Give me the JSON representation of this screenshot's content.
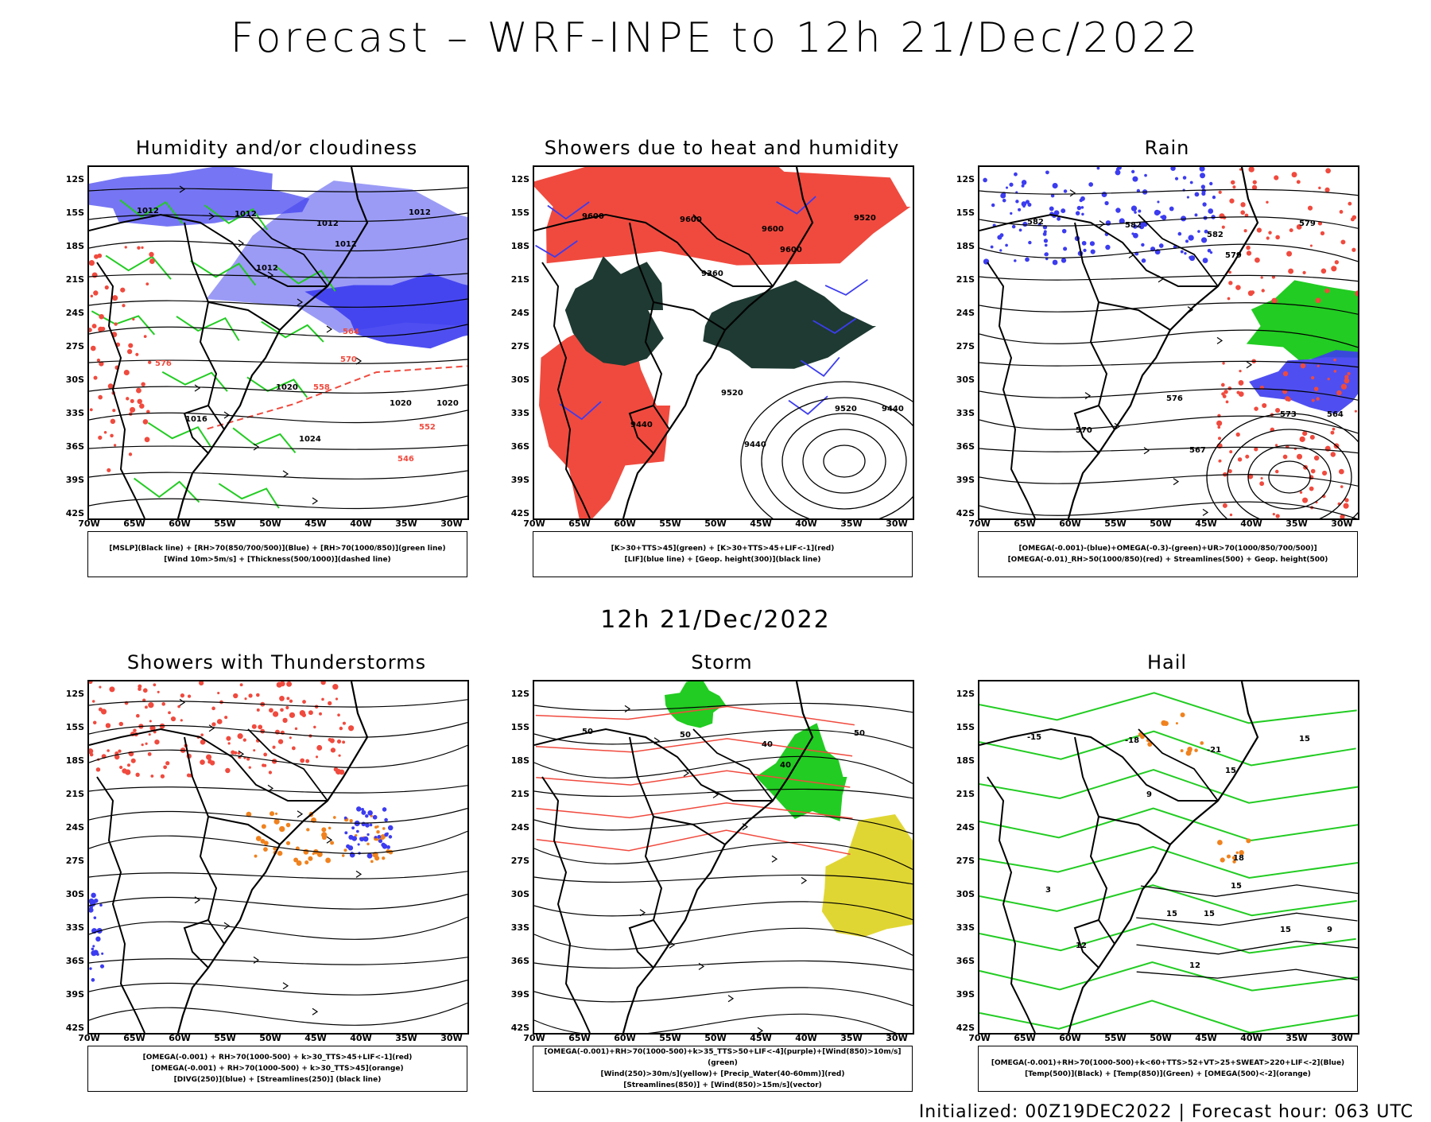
{
  "title": "Forecast – WRF-INPE to 12h 21/Dec/2022",
  "subtitle": "12h 21/Dec/2022",
  "footer": "Initialized: 00Z19DEC2022 | Forecast hour: 063 UTC",
  "axis": {
    "lat": [
      "12S",
      "15S",
      "18S",
      "21S",
      "24S",
      "27S",
      "30S",
      "33S",
      "36S",
      "39S",
      "42S"
    ],
    "lon": [
      "70W",
      "65W",
      "60W",
      "55W",
      "50W",
      "45W",
      "40W",
      "35W",
      "30W"
    ]
  },
  "colors": {
    "red": "#f04a3e",
    "blue": "#3c3cf0",
    "lavender": "#8a8af5",
    "green": "#22cc22",
    "darkgreen": "#1e3a32",
    "orange": "#f0821e",
    "yellow": "#e0d633",
    "coast": "#000000"
  },
  "panels": [
    {
      "title": "Humidity and/or cloudiness",
      "legend": [
        "[MSLP](Black line) + [RH>70(850/700/500)](Blue) + [RH>70(1000/850)](green line)",
        "[Wind 10m>5m/s] + [Thickness(500/1000)](dashed line)"
      ],
      "labels": [
        "1012",
        "1012",
        "1012",
        "1012",
        "1012",
        "1020",
        "1020",
        "1016",
        "1024",
        "1020",
        "1012",
        "576",
        "570",
        "564",
        "558",
        "552",
        "546"
      ],
      "layers": [
        "lavender",
        "blue",
        "green-contours",
        "red-dashed",
        "wind-vectors",
        "mslp"
      ]
    },
    {
      "title": "Showers due to heat and humidity",
      "legend": [
        "[K>30+TTS>45](green) + [K>30+TTS>45+LIF<-1](red)",
        "[LIF](blue line) + [Geop. height(300)](black line)"
      ],
      "labels": [
        "9600",
        "9600",
        "9600",
        "9600",
        "9520",
        "9520",
        "9520",
        "9440",
        "9440",
        "9440",
        "9360"
      ],
      "layers": [
        "red",
        "darkgreen",
        "blue-contours",
        "geopotential"
      ]
    },
    {
      "title": "Rain",
      "legend": [
        "[OMEGA(-0.001)-(blue)+OMEGA(-0.3)-(green)+UR>70(1000/850/700/500)]",
        "[OMEGA(-0.01)_RH>50(1000/850)(red) + Streamlines(500) + Geop. height(500)"
      ],
      "labels": [
        "582",
        "582",
        "582",
        "579",
        "579",
        "576",
        "573",
        "570",
        "567",
        "564"
      ],
      "layers": [
        "blue",
        "green",
        "red",
        "streamlines"
      ]
    },
    {
      "title": "Showers with Thunderstorms",
      "legend": [
        "[OMEGA(-0.001) + RH>70(1000-500) + k>30_TTS>45+LIF<-1](red)",
        "[OMEGA(-0.001) + RH>70(1000-500) + k>30_TTS>45](orange)",
        "[DIVG(250)](blue) + [Streamlines(250)] (black line)"
      ],
      "labels": [],
      "layers": [
        "red",
        "orange",
        "blue",
        "streamlines"
      ]
    },
    {
      "title": "Storm",
      "legend": [
        "[OMEGA(-0.001)+RH>70(1000-500)+k>35_TTS>50+LIF<-4](purple)+[Wind(850)>10m/s](green)",
        "[Wind(250)>30m/s](yellow)+ [Precip_Water(40-60mm)](red)",
        "[Streamlines(850)] + [Wind(850)>15m/s](vector)"
      ],
      "labels": [
        "50",
        "50",
        "40",
        "40",
        "50"
      ],
      "layers": [
        "green",
        "yellow",
        "red-contours",
        "streamlines"
      ]
    },
    {
      "title": "Hail",
      "legend": [
        "[OMEGA(-0.001)+RH>70(1000-500)+k<60+TTS>52+VT>25+SWEAT>220+LIF<-2](Blue)",
        "[Temp(500)](Black) + [Temp(850)](Green) + [OMEGA(500)<-2](orange)"
      ],
      "labels": [
        "-15",
        "-18",
        "-21",
        "15",
        "15",
        "15",
        "15",
        "12",
        "12",
        "9",
        "9",
        "3",
        "15",
        "18",
        "15"
      ],
      "layers": [
        "green-contours",
        "black-contours",
        "orange"
      ]
    }
  ]
}
